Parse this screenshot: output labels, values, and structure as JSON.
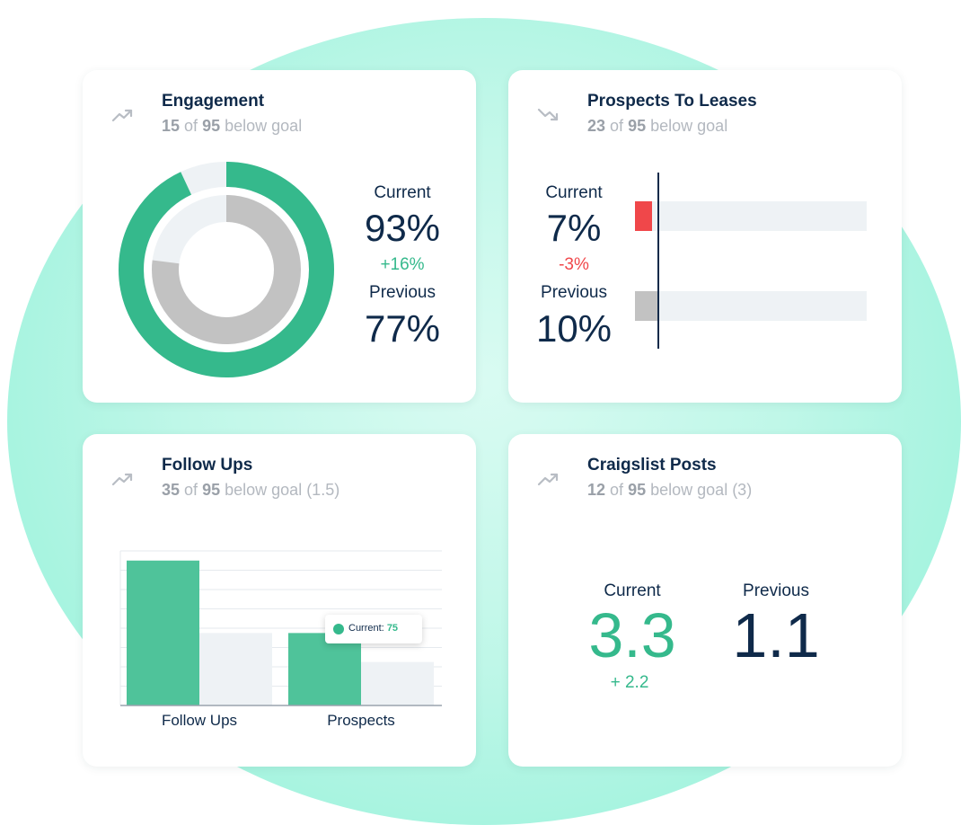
{
  "colors": {
    "accent_green": "#35b98c",
    "negative_red": "#f0474a",
    "neutral_gray": "#c2c2c2",
    "track_light": "#eef2f5",
    "navy": "#0f2a4a"
  },
  "engagement": {
    "icon": "trend-up-icon",
    "title": "Engagement",
    "sub_count": "15",
    "sub_of": "of",
    "sub_total": "95",
    "sub_rest": "below goal",
    "current_label": "Current",
    "current_value": "93%",
    "change": "+16%",
    "previous_label": "Previous",
    "previous_value": "77%",
    "current_fraction": 0.93,
    "previous_fraction": 0.77
  },
  "leases": {
    "icon": "trend-down-icon",
    "title": "Prospects To Leases",
    "sub_count": "23",
    "sub_of": "of",
    "sub_total": "95",
    "sub_rest": "below goal",
    "current_label": "Current",
    "current_value": "7%",
    "change": "-3%",
    "previous_label": "Previous",
    "previous_value": "10%"
  },
  "followups": {
    "icon": "trend-up-icon",
    "title": "Follow Ups",
    "sub_count": "35",
    "sub_of": "of",
    "sub_total": "95",
    "sub_rest": "below goal (1.5)",
    "tooltip_label": "Current:",
    "tooltip_value": "75"
  },
  "craigslist": {
    "icon": "trend-up-icon",
    "title": "Craigslist Posts",
    "sub_count": "12",
    "sub_of": "of",
    "sub_total": "95",
    "sub_rest": "below goal (3)",
    "current_label": "Current",
    "current_value": "3.3",
    "change": "+ 2.2",
    "previous_label": "Previous",
    "previous_value": "1.1"
  },
  "chart_data": {
    "type": "bar",
    "categories": [
      "Follow Ups",
      "Prospects"
    ],
    "series": [
      {
        "values": [
          150,
          75
        ]
      },
      {
        "values": [
          75,
          45
        ]
      }
    ],
    "ylim": [
      0,
      160
    ],
    "grid": true
  }
}
